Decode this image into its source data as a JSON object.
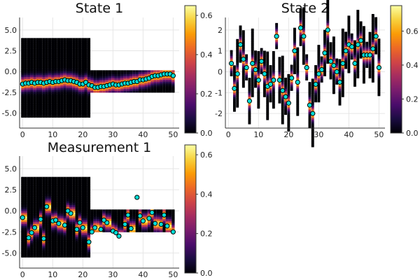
{
  "colors": {
    "marker_fill": "#00ddd6",
    "marker_edge": "#000000",
    "grid": "#e6e6e6",
    "colormap": [
      "#000004",
      "#1b0c41",
      "#4a0c6b",
      "#781c6d",
      "#a52c60",
      "#cf4446",
      "#ed6925",
      "#fb9b06",
      "#f7d13d",
      "#fcffa4"
    ]
  },
  "chart_data": [
    {
      "type": "heatmap",
      "title": "State 1",
      "xlabel": "",
      "ylabel": "",
      "xlim": [
        -1,
        52
      ],
      "ylim": [
        -6.8,
        6.5
      ],
      "xticks": [
        0,
        10,
        20,
        30,
        40,
        50
      ],
      "yticks": [
        -5.0,
        -2.5,
        0.0,
        2.5,
        5.0
      ],
      "xtick_labels": [
        "0",
        "10",
        "20",
        "30",
        "40",
        "50"
      ],
      "ytick_labels": [
        "-5.0",
        "-2.5",
        "0.0",
        "2.5",
        "5.0"
      ],
      "grid": true,
      "colorbar": {
        "range": [
          0.0,
          0.65
        ],
        "ticks": [
          0.0,
          0.2,
          0.4,
          0.6
        ],
        "tick_labels": [
          "0.0",
          "0.2",
          "0.4",
          "0.6"
        ]
      },
      "heatmap_extent": {
        "segments": [
          {
            "from": 0,
            "to": 22,
            "lo": -5.5,
            "hi": 4.0
          },
          {
            "from": 23,
            "to": 50,
            "lo": -2.5,
            "hi": 0.0
          }
        ]
      },
      "heatmap_peak": 0.62,
      "heatmap_width": 0.7,
      "scatter_series": [
        {
          "name": "",
          "x": [
            0,
            1,
            2,
            3,
            4,
            5,
            6,
            7,
            8,
            9,
            10,
            11,
            12,
            13,
            14,
            15,
            16,
            17,
            18,
            19,
            20,
            21,
            22,
            23,
            24,
            25,
            26,
            27,
            28,
            29,
            30,
            31,
            32,
            33,
            34,
            35,
            36,
            37,
            38,
            39,
            40,
            41,
            42,
            43,
            44,
            45,
            46,
            47,
            48,
            49,
            50
          ],
          "y": [
            -1.5,
            -1.4,
            -1.4,
            -1.3,
            -1.4,
            -1.3,
            -1.3,
            -1.4,
            -1.3,
            -1.2,
            -1.3,
            -1.2,
            -1.2,
            -1.1,
            -1.0,
            -1.1,
            -1.1,
            -1.2,
            -1.3,
            -1.5,
            -1.5,
            -1.3,
            -1.6,
            -1.7,
            -1.9,
            -1.9,
            -1.8,
            -1.8,
            -1.7,
            -1.6,
            -1.5,
            -1.6,
            -1.6,
            -1.5,
            -1.4,
            -1.4,
            -1.3,
            -1.2,
            -1.2,
            -1.0,
            -1.0,
            -0.9,
            -0.8,
            -0.6,
            -0.5,
            -0.5,
            -0.4,
            -0.3,
            -0.3,
            -0.3,
            -0.5
          ]
        }
      ]
    },
    {
      "type": "heatmap",
      "title": "State 2",
      "xlabel": "",
      "ylabel": "",
      "xlim": [
        -1,
        52
      ],
      "ylim": [
        -2.7,
        2.6
      ],
      "xticks": [
        0,
        10,
        20,
        30,
        40,
        50
      ],
      "yticks": [
        -2,
        -1,
        0,
        1,
        2
      ],
      "xtick_labels": [
        "0",
        "10",
        "20",
        "30",
        "40",
        "50"
      ],
      "ytick_labels": [
        "-2",
        "-1",
        "0",
        "1",
        "2"
      ],
      "grid": true,
      "colorbar": {
        "range": [
          0.0,
          0.75
        ],
        "ticks": [
          0.0,
          0.2,
          0.4,
          0.6
        ],
        "tick_labels": [
          "0.0",
          "0.2",
          "0.4",
          "0.6"
        ]
      },
      "heatmap_peak": 0.72,
      "heatmap_width": 0.28,
      "scatter_series": [
        {
          "name": "",
          "x": [
            1,
            2,
            3,
            4,
            5,
            6,
            7,
            8,
            9,
            10,
            11,
            12,
            13,
            14,
            15,
            16,
            17,
            18,
            19,
            20,
            21,
            22,
            23,
            24,
            25,
            26,
            27,
            28,
            29,
            30,
            31,
            32,
            33,
            34,
            35,
            36,
            37,
            38,
            39,
            40,
            41,
            42,
            43,
            44,
            45,
            46,
            47,
            48,
            49,
            50
          ],
          "y": [
            0.4,
            -0.8,
            -0.1,
            1.3,
            0.6,
            0.2,
            -1.4,
            0.4,
            0.1,
            -0.4,
            0.5,
            -0.1,
            -0.7,
            -0.6,
            -0.4,
            1.7,
            -0.4,
            -0.9,
            -1.2,
            -1.5,
            -0.3,
            1.0,
            -0.5,
            2.1,
            1.7,
            0.2,
            -1.6,
            -2.0,
            -0.6,
            -0.1,
            0.1,
            0.9,
            2.0,
            0.5,
            0.3,
            0.0,
            -0.5,
            0.4,
            1.0,
            1.3,
            1.2,
            0.4,
            1.3,
            1.5,
            0.8,
            0.8,
            0.8,
            1.1,
            1.7,
            0.2
          ]
        }
      ]
    },
    {
      "type": "heatmap",
      "title": "Measurement 1",
      "xlabel": "",
      "ylabel": "",
      "xlim": [
        -1,
        52
      ],
      "ylim": [
        -6.8,
        6.5
      ],
      "xticks": [
        0,
        10,
        20,
        30,
        40,
        50
      ],
      "yticks": [
        -5.0,
        -2.5,
        0.0,
        2.5,
        5.0
      ],
      "xtick_labels": [
        "0",
        "10",
        "20",
        "30",
        "40",
        "50"
      ],
      "ytick_labels": [
        "-5.0",
        "-2.5",
        "0.0",
        "2.5",
        "5.0"
      ],
      "grid": true,
      "colorbar": {
        "range": [
          0.0,
          0.65
        ],
        "ticks": [
          0.0,
          0.2,
          0.4,
          0.6
        ],
        "tick_labels": [
          "0.0",
          "0.2",
          "0.4",
          "0.6"
        ]
      },
      "heatmap_extent": {
        "segments": [
          {
            "from": 0,
            "to": 22,
            "lo": -5.5,
            "hi": 4.0
          },
          {
            "from": 23,
            "to": 50,
            "lo": -2.5,
            "hi": 0.0
          }
        ]
      },
      "heatmap_peak": 0.62,
      "heatmap_width": 0.7,
      "scatter_series": [
        {
          "name": "",
          "x": [
            0,
            2,
            4,
            6,
            8,
            10,
            12,
            14,
            16,
            18,
            20,
            22,
            24,
            26,
            28,
            30,
            32,
            34,
            36,
            38,
            40,
            42,
            44,
            46,
            48,
            50,
            3,
            7,
            11,
            15,
            19,
            23,
            27,
            31,
            35,
            39,
            43,
            47
          ],
          "y": [
            -0.8,
            -3.2,
            -2.0,
            -1.0,
            0.5,
            -1.2,
            -1.5,
            -1.7,
            -0.3,
            -2.2,
            -2.0,
            -3.7,
            -2.0,
            -2.2,
            -1.4,
            -2.4,
            -3.0,
            -1.6,
            -2.1,
            1.6,
            -1.2,
            -0.9,
            -1.5,
            -1.6,
            -1.8,
            -2.5,
            -2.6,
            -3.3,
            -1.1,
            0.0,
            -1.4,
            -2.5,
            -1.1,
            -2.6,
            -0.5,
            -0.6,
            -0.2,
            -0.5
          ]
        }
      ]
    }
  ]
}
